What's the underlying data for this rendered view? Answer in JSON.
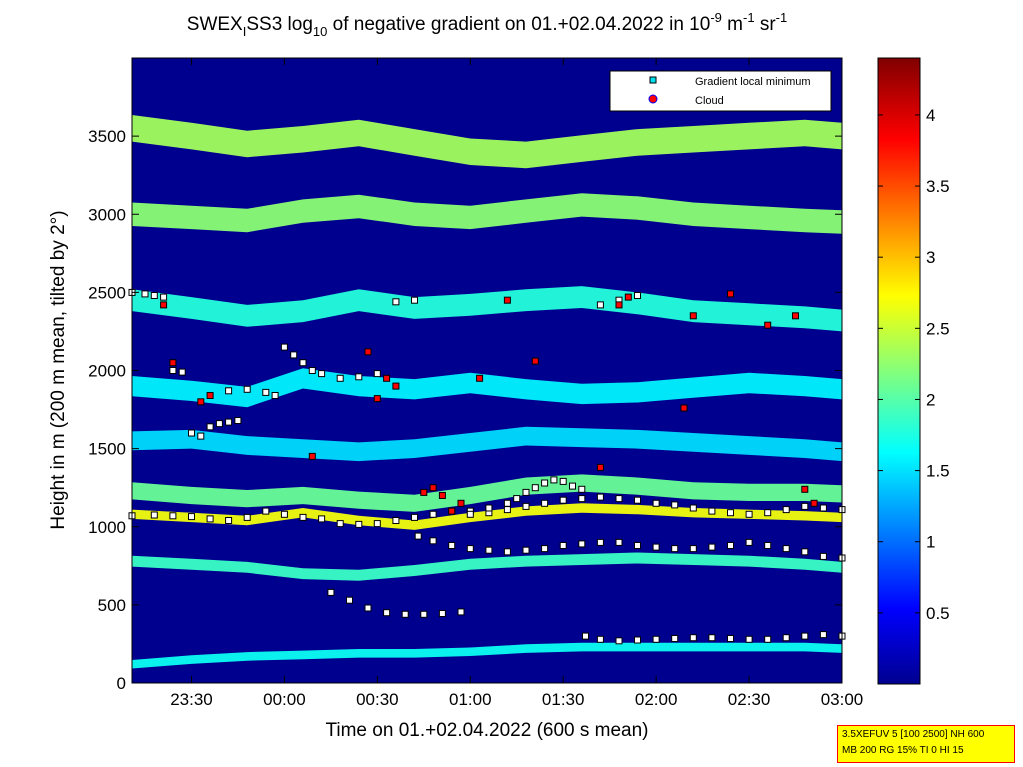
{
  "chart_data": {
    "type": "heatmap",
    "title_parts": {
      "pre": "SWEX",
      "sub1": "I",
      "mid": "SS3 log",
      "sub2": "10",
      "post": " of negative gradient on 01.+02.04.2022 in 10",
      "sup1": "-9",
      "unit1": " m",
      "sup2": "-1",
      "unit2": " sr",
      "sup3": "-1"
    },
    "xlabel": "Time on 01.+02.04.2022 (600 s mean)",
    "ylabel": "Height in m (200 m mean, tilted by 2°)",
    "x_ticks": [
      "23:30",
      "00:00",
      "00:30",
      "01:00",
      "01:30",
      "02:00",
      "02:30",
      "03:00"
    ],
    "x_tick_hours": [
      -0.5,
      0,
      0.5,
      1,
      1.5,
      2,
      2.5,
      3
    ],
    "xlim_hours": [
      -0.82,
      3.0
    ],
    "y_ticks": [
      0,
      500,
      1000,
      1500,
      2000,
      2500,
      3000,
      3500
    ],
    "ylim": [
      0,
      4000
    ],
    "colorbar": {
      "ticks": [
        0.5,
        1,
        1.5,
        2,
        2.5,
        3,
        3.5,
        4
      ],
      "tick_labels": [
        "0.5",
        "1",
        "1.5",
        "2",
        "2.5",
        "3",
        "3.5",
        "4"
      ],
      "range": [
        0,
        4.4
      ]
    },
    "layers": [
      {
        "time": [
          -0.82,
          -0.5,
          -0.2,
          0.1,
          0.4,
          0.7,
          1.0,
          1.3,
          1.6,
          1.9,
          2.2,
          2.5,
          2.8,
          3.0
        ],
        "height": [
          1080,
          1060,
          1040,
          1090,
          1040,
          1010,
          1060,
          1100,
          1120,
          1110,
          1090,
          1080,
          1070,
          1060
        ],
        "width": 60,
        "level": 2.7
      },
      {
        "time": [
          -0.82,
          -0.5,
          -0.2,
          0.1,
          0.4,
          0.7,
          1.0,
          1.3,
          1.6,
          1.9,
          2.2,
          2.5,
          2.8,
          3.0
        ],
        "height": [
          1230,
          1200,
          1180,
          1200,
          1170,
          1150,
          1200,
          1260,
          1280,
          1260,
          1230,
          1220,
          1220,
          1210
        ],
        "width": 110,
        "level": 2.1
      },
      {
        "time": [
          -0.82,
          -0.5,
          -0.2,
          0.1,
          0.4,
          0.7,
          1.0,
          1.3,
          1.6,
          1.9,
          2.2,
          2.5,
          2.8,
          3.0
        ],
        "height": [
          780,
          760,
          740,
          700,
          690,
          720,
          760,
          780,
          790,
          800,
          790,
          780,
          760,
          740
        ],
        "width": 70,
        "level": 1.9
      },
      {
        "time": [
          -0.82,
          -0.5,
          -0.2,
          0.1,
          0.4,
          0.7,
          1.0,
          1.3,
          1.6,
          1.9,
          2.2,
          2.5,
          2.8,
          3.0
        ],
        "height": [
          120,
          150,
          170,
          180,
          190,
          190,
          200,
          220,
          230,
          230,
          230,
          230,
          230,
          220
        ],
        "width": 55,
        "level": 1.7
      },
      {
        "time": [
          -0.82,
          -0.5,
          -0.2,
          0.1,
          0.4,
          0.7,
          1.0,
          1.3,
          1.6,
          1.9,
          2.2,
          2.5,
          2.8,
          3.0
        ],
        "height": [
          3550,
          3500,
          3450,
          3480,
          3520,
          3460,
          3400,
          3380,
          3420,
          3460,
          3480,
          3500,
          3520,
          3500
        ],
        "width": 170,
        "level": 2.35
      },
      {
        "time": [
          -0.82,
          -0.5,
          -0.2,
          0.1,
          0.4,
          0.7,
          1.0,
          1.3,
          1.6,
          1.9,
          2.2,
          2.5,
          2.8,
          3.0
        ],
        "height": [
          3000,
          2980,
          2960,
          3020,
          3050,
          3000,
          2980,
          3020,
          3060,
          3040,
          3000,
          2980,
          2960,
          2950
        ],
        "width": 150,
        "level": 2.25
      },
      {
        "time": [
          -0.82,
          -0.5,
          -0.2,
          0.1,
          0.4,
          0.7,
          1.0,
          1.3,
          1.6,
          1.9,
          2.2,
          2.5,
          2.8,
          3.0
        ],
        "height": [
          2450,
          2400,
          2350,
          2380,
          2450,
          2400,
          2420,
          2450,
          2470,
          2430,
          2380,
          2360,
          2340,
          2320
        ],
        "width": 140,
        "level": 1.8
      },
      {
        "time": [
          -0.82,
          -0.5,
          -0.2,
          0.1,
          0.4,
          0.7,
          1.0,
          1.3,
          1.6,
          1.9,
          2.2,
          2.5,
          2.8,
          3.0
        ],
        "height": [
          1900,
          1870,
          1830,
          1950,
          1900,
          1880,
          1920,
          1880,
          1850,
          1860,
          1890,
          1920,
          1900,
          1880
        ],
        "width": 130,
        "level": 1.6
      },
      {
        "time": [
          -0.82,
          -0.5,
          -0.2,
          0.1,
          0.4,
          0.7,
          1.0,
          1.3,
          1.6,
          1.9,
          2.2,
          2.5,
          2.8,
          3.0
        ],
        "height": [
          1550,
          1560,
          1520,
          1500,
          1480,
          1500,
          1540,
          1580,
          1570,
          1560,
          1540,
          1520,
          1500,
          1480
        ],
        "width": 120,
        "level": 1.5
      }
    ],
    "series": [
      {
        "name": "Gradient local minimum",
        "marker": "square",
        "color": "#ffffff",
        "traces": [
          {
            "time": [
              -0.82,
              -0.7,
              -0.6,
              -0.5,
              -0.4,
              -0.3,
              -0.2,
              -0.1,
              0.0,
              0.1,
              0.2,
              0.3,
              0.4,
              0.5,
              0.6,
              0.7,
              0.8,
              0.9,
              1.0,
              1.1,
              1.2,
              1.3,
              1.4,
              1.5,
              1.6,
              1.7,
              1.8,
              1.9,
              2.0,
              2.1,
              2.2,
              2.3,
              2.4,
              2.5,
              2.6,
              2.7,
              2.8,
              2.9,
              3.0
            ],
            "height": [
              1070,
              1075,
              1070,
              1065,
              1050,
              1040,
              1060,
              1100,
              1080,
              1060,
              1050,
              1020,
              1015,
              1020,
              1040,
              1060,
              1080,
              1100,
              1100,
              1090,
              1110,
              1130,
              1150,
              1170,
              1180,
              1190,
              1180,
              1170,
              1150,
              1140,
              1120,
              1100,
              1090,
              1080,
              1090,
              1110,
              1130,
              1120,
              1110
            ]
          },
          {
            "time": [
              0.72,
              0.8,
              0.9,
              1.0,
              1.1,
              1.2,
              1.3,
              1.4,
              1.5,
              1.6,
              1.7,
              1.8,
              1.9,
              2.0,
              2.1,
              2.2,
              2.3,
              2.4,
              2.5,
              2.6,
              2.7,
              2.8,
              2.9,
              3.0
            ],
            "height": [
              940,
              910,
              880,
              860,
              850,
              840,
              850,
              860,
              880,
              890,
              900,
              900,
              880,
              870,
              860,
              860,
              870,
              880,
              900,
              880,
              860,
              840,
              810,
              800
            ]
          },
          {
            "time": [
              0.25,
              0.35,
              0.45,
              0.55,
              0.65,
              0.75,
              0.85,
              0.95
            ],
            "height": [
              580,
              530,
              480,
              450,
              440,
              440,
              445,
              455
            ]
          },
          {
            "time": [
              1.62,
              1.7,
              1.8,
              1.9,
              2.0,
              2.1,
              2.2,
              2.3,
              2.4,
              2.5,
              2.6,
              2.7,
              2.8,
              2.9,
              3.0
            ],
            "height": [
              300,
              280,
              270,
              275,
              280,
              285,
              290,
              290,
              285,
              280,
              280,
              290,
              300,
              310,
              300
            ]
          },
          {
            "time": [
              -0.82,
              -0.75,
              -0.7,
              -0.65,
              -0.6,
              -0.55,
              -0.5,
              -0.45,
              -0.4,
              -0.35,
              -0.3,
              -0.25
            ],
            "height": [
              2500,
              2490,
              2480,
              2470,
              2000,
              1990,
              1600,
              1580,
              1640,
              1660,
              1670,
              1680
            ]
          },
          {
            "time": [
              -0.3,
              -0.2,
              -0.1,
              -0.05,
              0.0,
              0.05,
              0.1,
              0.15,
              0.2,
              0.3,
              0.4,
              0.5,
              0.6,
              0.7
            ],
            "height": [
              1870,
              1880,
              1860,
              1840,
              2150,
              2100,
              2050,
              2000,
              1980,
              1950,
              1960,
              1980,
              2440,
              2450
            ]
          },
          {
            "time": [
              0.9,
              1.0,
              1.1,
              1.2,
              1.25,
              1.3,
              1.35,
              1.4,
              1.45,
              1.5,
              1.55,
              1.6,
              1.7,
              1.8,
              1.9
            ],
            "height": [
              1100,
              1080,
              1120,
              1150,
              1180,
              1220,
              1250,
              1280,
              1300,
              1290,
              1260,
              1240,
              2420,
              2450,
              2480
            ]
          }
        ]
      },
      {
        "name": "Cloud",
        "marker": "square",
        "color": "#ff0000",
        "traces": [
          {
            "time": [
              -0.65,
              -0.6,
              -0.45,
              -0.4,
              0.15,
              0.45,
              0.5,
              0.55,
              0.6,
              0.75,
              0.8,
              0.85,
              0.9,
              0.95,
              1.05,
              1.2,
              1.35,
              1.7,
              1.8,
              1.85,
              2.15,
              2.2,
              2.4,
              2.6,
              2.75,
              2.8,
              2.85
            ],
            "height": [
              2420,
              2050,
              1800,
              1840,
              1450,
              2120,
              1820,
              1950,
              1900,
              1220,
              1250,
              1200,
              1100,
              1150,
              1950,
              2450,
              2060,
              1380,
              2420,
              2470,
              1760,
              2350,
              2490,
              2290,
              2350,
              1240,
              1150
            ]
          }
        ]
      }
    ],
    "legend": {
      "position": "top-right",
      "entries": [
        "Gradient local minimum",
        "Cloud"
      ]
    }
  },
  "info_box": {
    "line1": "3.5XEFUV 5 [100 2500] NH 600",
    "line2": "MB 200 RG 15% TI 0 HI 15"
  },
  "colors": {
    "colormap": "jet",
    "info_box_bg": "#ffff00",
    "info_box_border": "#ff0000"
  }
}
